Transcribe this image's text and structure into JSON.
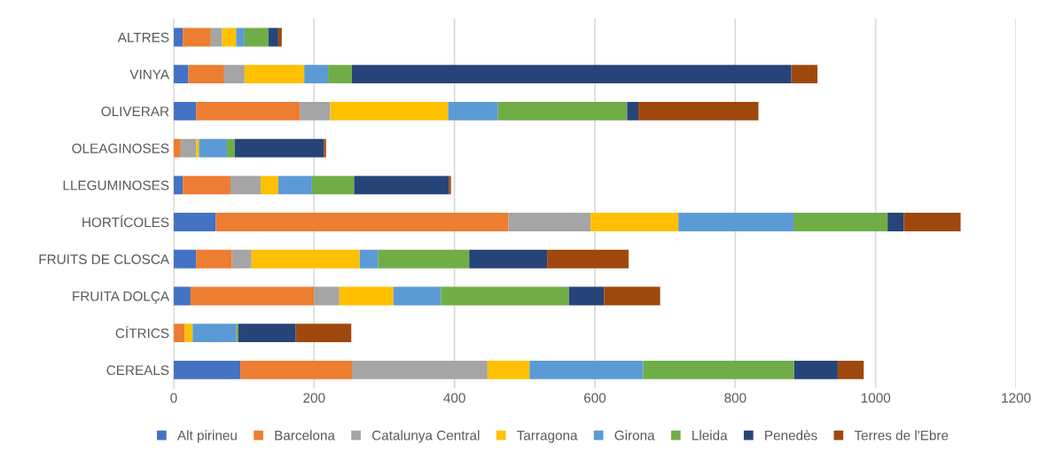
{
  "chart_data": {
    "type": "bar",
    "orientation": "horizontal",
    "stacked": true,
    "categories": [
      "ALTRES",
      "VINYA",
      "OLIVERAR",
      "OLEAGINOSES",
      "LLEGUMINOSES",
      "HORTÍCOLES",
      "FRUITS DE CLOSCA",
      "FRUITA DOLÇA",
      "CÍTRICS",
      "CEREALS"
    ],
    "series": [
      {
        "name": "Alt pirineu",
        "color": "#4472c4",
        "values": [
          13,
          21,
          32,
          0,
          13,
          60,
          32,
          24,
          0,
          95
        ]
      },
      {
        "name": "Barcelona",
        "color": "#ed7d31",
        "values": [
          40,
          51,
          148,
          10,
          68,
          417,
          51,
          176,
          16,
          159
        ]
      },
      {
        "name": "Catalunya Central",
        "color": "#a5a5a5",
        "values": [
          16,
          29,
          43,
          22,
          43,
          117,
          28,
          36,
          0,
          193
        ]
      },
      {
        "name": "Tarragona",
        "color": "#ffc000",
        "values": [
          20,
          85,
          168,
          4,
          25,
          125,
          154,
          77,
          11,
          60
        ]
      },
      {
        "name": "Girona",
        "color": "#5b9bd5",
        "values": [
          12,
          34,
          71,
          40,
          48,
          164,
          26,
          68,
          62,
          162
        ]
      },
      {
        "name": "Lleida",
        "color": "#70ad47",
        "values": [
          34,
          34,
          184,
          11,
          60,
          134,
          130,
          182,
          3,
          215
        ]
      },
      {
        "name": "Penedès",
        "color": "#264478",
        "values": [
          14,
          626,
          16,
          127,
          135,
          23,
          111,
          50,
          82,
          62
        ]
      },
      {
        "name": "Terres de l'Ebre",
        "color": "#9e480e",
        "values": [
          5,
          37,
          171,
          3,
          3,
          81,
          116,
          80,
          79,
          37
        ]
      }
    ],
    "xlim": [
      0,
      1200
    ],
    "xticks": [
      0,
      200,
      400,
      600,
      800,
      1000,
      1200
    ],
    "grid": "x",
    "legend": "bottom"
  }
}
